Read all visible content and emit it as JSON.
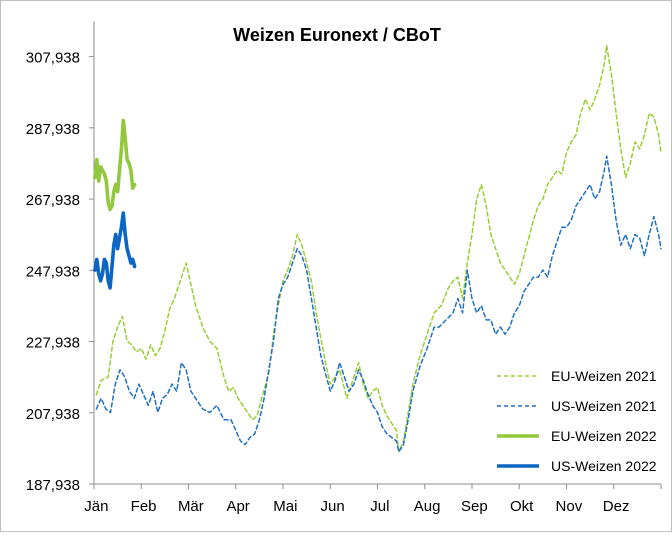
{
  "chart_data": {
    "type": "line",
    "title": "Weizen Euronext / CBoT",
    "xlabel": "",
    "ylabel": "",
    "ylim": [
      187.938,
      317.938
    ],
    "yticks": [
      {
        "value": 187.938,
        "label": "187,938"
      },
      {
        "value": 207.938,
        "label": "207,938"
      },
      {
        "value": 227.938,
        "label": "227,938"
      },
      {
        "value": 247.938,
        "label": "247,938"
      },
      {
        "value": 267.938,
        "label": "267,938"
      },
      {
        "value": 287.938,
        "label": "287,938"
      },
      {
        "value": 307.938,
        "label": "307,938"
      }
    ],
    "xlim": [
      0,
      12
    ],
    "months": [
      "Jän",
      "Feb",
      "Mär",
      "Apr",
      "Mai",
      "Jun",
      "Jul",
      "Aug",
      "Sep",
      "Okt",
      "Nov",
      "Dez"
    ],
    "grid": false,
    "legend_position": "bottom-right",
    "series": [
      {
        "name": "EU-Weizen 2021",
        "color": "#9acd32",
        "style": "dashed",
        "points": [
          [
            0.05,
            213
          ],
          [
            0.15,
            217
          ],
          [
            0.3,
            218
          ],
          [
            0.4,
            228
          ],
          [
            0.5,
            232
          ],
          [
            0.6,
            235
          ],
          [
            0.7,
            228
          ],
          [
            0.8,
            227
          ],
          [
            0.9,
            225
          ],
          [
            1.0,
            226
          ],
          [
            1.1,
            223
          ],
          [
            1.2,
            227
          ],
          [
            1.3,
            224
          ],
          [
            1.4,
            226
          ],
          [
            1.5,
            231
          ],
          [
            1.6,
            237
          ],
          [
            1.7,
            240
          ],
          [
            1.8,
            244
          ],
          [
            1.9,
            248
          ],
          [
            1.95,
            250
          ],
          [
            2.05,
            244
          ],
          [
            2.15,
            238
          ],
          [
            2.3,
            232
          ],
          [
            2.45,
            228
          ],
          [
            2.6,
            226
          ],
          [
            2.75,
            218
          ],
          [
            2.85,
            214
          ],
          [
            2.95,
            215
          ],
          [
            3.05,
            212
          ],
          [
            3.15,
            210
          ],
          [
            3.25,
            208
          ],
          [
            3.35,
            206
          ],
          [
            3.45,
            207
          ],
          [
            3.55,
            212
          ],
          [
            3.7,
            219
          ],
          [
            3.8,
            230
          ],
          [
            3.9,
            238
          ],
          [
            4.0,
            245
          ],
          [
            4.1,
            248
          ],
          [
            4.2,
            252
          ],
          [
            4.3,
            258
          ],
          [
            4.4,
            255
          ],
          [
            4.5,
            250
          ],
          [
            4.6,
            245
          ],
          [
            4.7,
            236
          ],
          [
            4.8,
            229
          ],
          [
            4.9,
            222
          ],
          [
            5.0,
            216
          ],
          [
            5.2,
            220
          ],
          [
            5.35,
            212
          ],
          [
            5.5,
            218
          ],
          [
            5.6,
            222
          ],
          [
            5.7,
            216
          ],
          [
            5.8,
            212
          ],
          [
            5.9,
            214
          ],
          [
            6.0,
            215
          ],
          [
            6.1,
            210
          ],
          [
            6.2,
            207
          ],
          [
            6.3,
            205
          ],
          [
            6.4,
            203
          ],
          [
            6.45,
            197
          ],
          [
            6.55,
            200
          ],
          [
            6.65,
            208
          ],
          [
            6.75,
            216
          ],
          [
            6.9,
            224
          ],
          [
            7.05,
            230
          ],
          [
            7.2,
            236
          ],
          [
            7.35,
            238
          ],
          [
            7.5,
            243
          ],
          [
            7.6,
            245
          ],
          [
            7.7,
            246
          ],
          [
            7.8,
            240
          ],
          [
            7.9,
            250
          ],
          [
            8.0,
            258
          ],
          [
            8.1,
            268
          ],
          [
            8.2,
            272
          ],
          [
            8.3,
            266
          ],
          [
            8.4,
            258
          ],
          [
            8.5,
            254
          ],
          [
            8.6,
            250
          ],
          [
            8.7,
            248
          ],
          [
            8.8,
            246
          ],
          [
            8.9,
            244
          ],
          [
            9.0,
            247
          ],
          [
            9.1,
            252
          ],
          [
            9.2,
            257
          ],
          [
            9.3,
            262
          ],
          [
            9.4,
            266
          ],
          [
            9.5,
            268
          ],
          [
            9.6,
            272
          ],
          [
            9.7,
            274
          ],
          [
            9.8,
            276
          ],
          [
            9.9,
            275
          ],
          [
            10.0,
            281
          ],
          [
            10.1,
            284
          ],
          [
            10.2,
            286
          ],
          [
            10.3,
            292
          ],
          [
            10.4,
            296
          ],
          [
            10.5,
            293
          ],
          [
            10.6,
            296
          ],
          [
            10.7,
            300
          ],
          [
            10.8,
            306
          ],
          [
            10.85,
            311
          ],
          [
            10.95,
            303
          ],
          [
            11.05,
            292
          ],
          [
            11.15,
            282
          ],
          [
            11.25,
            274
          ],
          [
            11.35,
            278
          ],
          [
            11.45,
            284
          ],
          [
            11.55,
            282
          ],
          [
            11.65,
            286
          ],
          [
            11.75,
            292
          ],
          [
            11.85,
            291
          ],
          [
            11.95,
            286
          ],
          [
            12.0,
            281
          ]
        ]
      },
      {
        "name": "US-Weizen 2021",
        "color": "#1f6fc5",
        "style": "dashed",
        "points": [
          [
            0.05,
            209
          ],
          [
            0.15,
            212
          ],
          [
            0.25,
            209
          ],
          [
            0.35,
            208
          ],
          [
            0.45,
            216
          ],
          [
            0.55,
            220
          ],
          [
            0.65,
            218
          ],
          [
            0.75,
            214
          ],
          [
            0.85,
            212
          ],
          [
            0.95,
            216
          ],
          [
            1.05,
            213
          ],
          [
            1.15,
            210
          ],
          [
            1.25,
            214
          ],
          [
            1.35,
            208
          ],
          [
            1.45,
            212
          ],
          [
            1.55,
            213
          ],
          [
            1.65,
            216
          ],
          [
            1.75,
            214
          ],
          [
            1.85,
            222
          ],
          [
            1.95,
            220
          ],
          [
            2.05,
            214
          ],
          [
            2.15,
            212
          ],
          [
            2.3,
            209
          ],
          [
            2.45,
            208
          ],
          [
            2.6,
            210
          ],
          [
            2.75,
            206
          ],
          [
            2.9,
            206
          ],
          [
            3.0,
            203
          ],
          [
            3.1,
            200
          ],
          [
            3.2,
            199
          ],
          [
            3.3,
            201
          ],
          [
            3.4,
            202
          ],
          [
            3.5,
            206
          ],
          [
            3.6,
            212
          ],
          [
            3.7,
            220
          ],
          [
            3.8,
            228
          ],
          [
            3.9,
            240
          ],
          [
            4.0,
            244
          ],
          [
            4.1,
            246
          ],
          [
            4.2,
            250
          ],
          [
            4.3,
            254
          ],
          [
            4.4,
            252
          ],
          [
            4.5,
            248
          ],
          [
            4.6,
            240
          ],
          [
            4.7,
            232
          ],
          [
            4.8,
            224
          ],
          [
            4.9,
            219
          ],
          [
            5.0,
            214
          ],
          [
            5.1,
            217
          ],
          [
            5.2,
            222
          ],
          [
            5.3,
            218
          ],
          [
            5.4,
            214
          ],
          [
            5.5,
            216
          ],
          [
            5.6,
            220
          ],
          [
            5.7,
            217
          ],
          [
            5.8,
            213
          ],
          [
            5.9,
            210
          ],
          [
            6.0,
            208
          ],
          [
            6.1,
            204
          ],
          [
            6.2,
            202
          ],
          [
            6.3,
            201
          ],
          [
            6.4,
            200
          ],
          [
            6.45,
            197
          ],
          [
            6.55,
            199
          ],
          [
            6.65,
            206
          ],
          [
            6.75,
            214
          ],
          [
            6.9,
            221
          ],
          [
            7.05,
            226
          ],
          [
            7.2,
            232
          ],
          [
            7.3,
            232
          ],
          [
            7.45,
            234
          ],
          [
            7.6,
            236
          ],
          [
            7.7,
            240
          ],
          [
            7.8,
            236
          ],
          [
            7.9,
            248
          ],
          [
            8.0,
            240
          ],
          [
            8.1,
            236
          ],
          [
            8.2,
            238
          ],
          [
            8.3,
            234
          ],
          [
            8.4,
            234
          ],
          [
            8.5,
            230
          ],
          [
            8.6,
            232
          ],
          [
            8.7,
            230
          ],
          [
            8.8,
            232
          ],
          [
            8.9,
            236
          ],
          [
            9.0,
            238
          ],
          [
            9.1,
            242
          ],
          [
            9.2,
            244
          ],
          [
            9.3,
            246
          ],
          [
            9.4,
            246
          ],
          [
            9.5,
            248
          ],
          [
            9.6,
            246
          ],
          [
            9.7,
            252
          ],
          [
            9.8,
            256
          ],
          [
            9.9,
            260
          ],
          [
            10.0,
            260
          ],
          [
            10.1,
            262
          ],
          [
            10.2,
            266
          ],
          [
            10.3,
            268
          ],
          [
            10.4,
            270
          ],
          [
            10.5,
            272
          ],
          [
            10.6,
            268
          ],
          [
            10.7,
            270
          ],
          [
            10.8,
            276
          ],
          [
            10.85,
            280
          ],
          [
            10.95,
            272
          ],
          [
            11.05,
            262
          ],
          [
            11.15,
            255
          ],
          [
            11.25,
            258
          ],
          [
            11.35,
            254
          ],
          [
            11.45,
            258
          ],
          [
            11.55,
            257
          ],
          [
            11.65,
            252
          ],
          [
            11.75,
            258
          ],
          [
            11.85,
            263
          ],
          [
            11.95,
            258
          ],
          [
            12.0,
            254
          ]
        ]
      },
      {
        "name": "EU-Weizen 2022",
        "color": "#92c83e",
        "style": "solid",
        "points": [
          [
            0.02,
            274
          ],
          [
            0.06,
            279
          ],
          [
            0.1,
            273
          ],
          [
            0.14,
            277
          ],
          [
            0.18,
            276
          ],
          [
            0.22,
            275
          ],
          [
            0.26,
            273
          ],
          [
            0.3,
            267
          ],
          [
            0.34,
            265
          ],
          [
            0.38,
            266
          ],
          [
            0.42,
            270
          ],
          [
            0.46,
            272
          ],
          [
            0.5,
            270
          ],
          [
            0.54,
            276
          ],
          [
            0.58,
            282
          ],
          [
            0.62,
            290
          ],
          [
            0.66,
            285
          ],
          [
            0.7,
            279
          ],
          [
            0.74,
            278
          ],
          [
            0.78,
            276
          ],
          [
            0.82,
            271
          ],
          [
            0.86,
            272
          ]
        ]
      },
      {
        "name": "US-Weizen 2022",
        "color": "#0c66c4",
        "style": "solid",
        "points": [
          [
            0.02,
            248
          ],
          [
            0.06,
            251
          ],
          [
            0.1,
            247
          ],
          [
            0.14,
            245
          ],
          [
            0.18,
            247
          ],
          [
            0.22,
            251
          ],
          [
            0.26,
            250
          ],
          [
            0.3,
            245
          ],
          [
            0.34,
            243
          ],
          [
            0.38,
            249
          ],
          [
            0.42,
            255
          ],
          [
            0.46,
            258
          ],
          [
            0.5,
            254
          ],
          [
            0.54,
            257
          ],
          [
            0.58,
            260
          ],
          [
            0.62,
            264
          ],
          [
            0.66,
            258
          ],
          [
            0.7,
            254
          ],
          [
            0.74,
            252
          ],
          [
            0.78,
            250
          ],
          [
            0.82,
            251
          ],
          [
            0.86,
            249
          ]
        ]
      }
    ]
  }
}
